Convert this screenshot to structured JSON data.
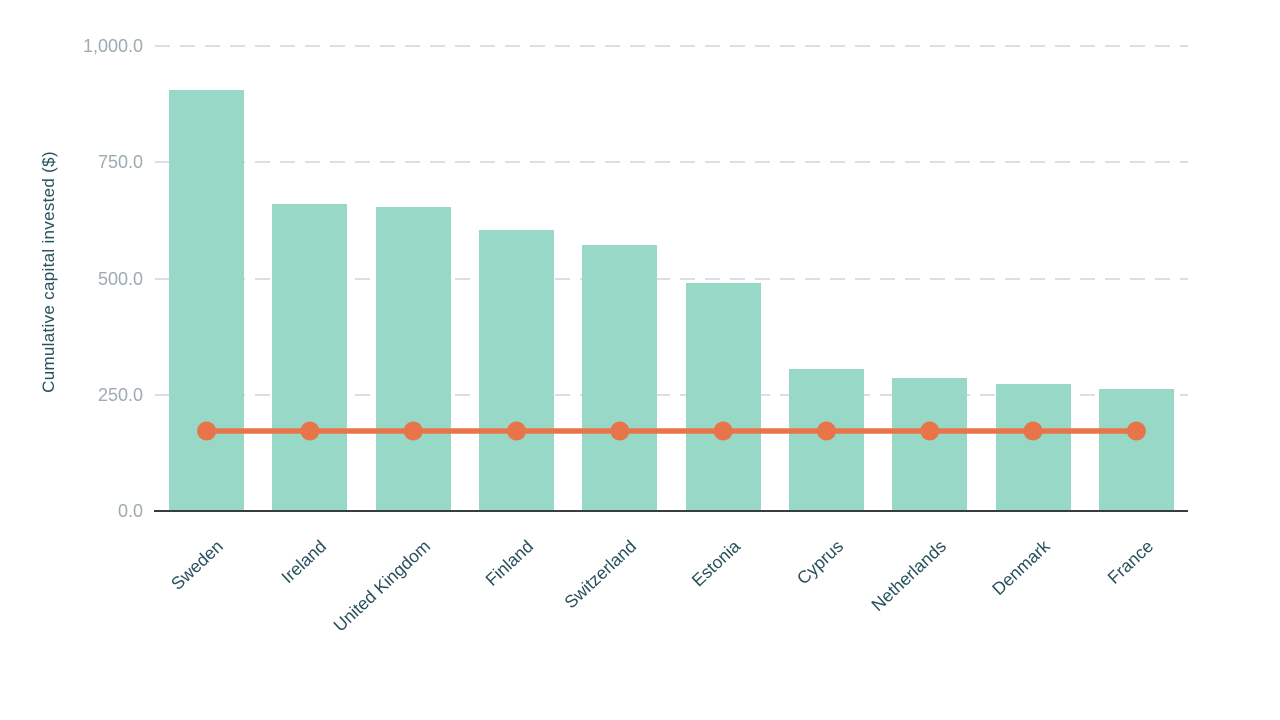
{
  "chart_data": {
    "type": "bar",
    "title": "",
    "xlabel": "",
    "ylabel": "Cumulative capital invested ($)",
    "categories": [
      "Sweden",
      "Ireland",
      "United Kingdom",
      "Finland",
      "Switzerland",
      "Estonia",
      "Cyprus",
      "Netherlands",
      "Denmark",
      "France"
    ],
    "series": [
      {
        "name": "Cumulative capital invested",
        "type": "bar",
        "color": "#97d8c6",
        "values": [
          906,
          661,
          654,
          605,
          572,
          490,
          305,
          287,
          274,
          263
        ]
      },
      {
        "name": "Reference line",
        "type": "line",
        "color": "#e8754a",
        "values": [
          172,
          172,
          172,
          172,
          172,
          172,
          172,
          172,
          172,
          172
        ]
      }
    ],
    "ylim": [
      0,
      1000
    ],
    "yticks": [
      {
        "value": 0,
        "label": "0.0"
      },
      {
        "value": 250,
        "label": "250.0"
      },
      {
        "value": 500,
        "label": "500.0"
      },
      {
        "value": 750,
        "label": "750.0"
      },
      {
        "value": 1000,
        "label": "1,000.0"
      }
    ],
    "grid": "horizontal-dashed",
    "legend_position": "none"
  },
  "colors": {
    "bar": "#97d8c6",
    "line": "#e8754a",
    "axis_line": "#383d3f",
    "gridline": "#dcdfe1",
    "y_tick_text": "#9dabb2",
    "category_text": "#26505c",
    "background": "#ffffff"
  }
}
